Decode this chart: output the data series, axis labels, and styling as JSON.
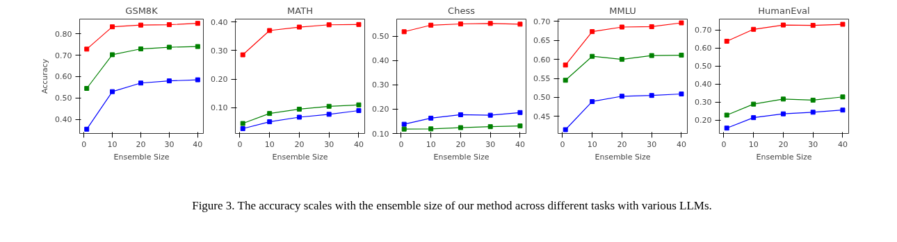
{
  "chart_data": [
    {
      "type": "line",
      "title": "GSM8K",
      "xlabel": "Ensemble Size",
      "ylabel": "Accuracy",
      "x": [
        1,
        10,
        20,
        30,
        40
      ],
      "xlim": [
        -1.5,
        42
      ],
      "xticks": [
        0,
        10,
        20,
        30,
        40
      ],
      "ylim": [
        0.335,
        0.868
      ],
      "yticks": [
        {
          "value": 0.4,
          "label": "0.40"
        },
        {
          "value": 0.5,
          "label": "0.50"
        },
        {
          "value": 0.6,
          "label": "0.60"
        },
        {
          "value": 0.7,
          "label": "0.70"
        },
        {
          "value": 0.8,
          "label": "0.80"
        }
      ],
      "marker": "square",
      "grid": false,
      "annotations": [
        "Figure 3. The accuracy scales with the ensemble size of our method across different tasks with various LLMs."
      ],
      "series": [
        {
          "color": "#0000ff",
          "values": [
            0.355,
            0.53,
            0.57,
            0.58,
            0.585
          ]
        },
        {
          "color": "#008000",
          "values": [
            0.545,
            0.702,
            0.729,
            0.737,
            0.74
          ]
        },
        {
          "color": "#ff0000",
          "values": [
            0.728,
            0.832,
            0.84,
            0.842,
            0.848
          ]
        }
      ]
    },
    {
      "type": "line",
      "title": "MATH",
      "xlabel": "Ensemble Size",
      "x": [
        1,
        10,
        20,
        30,
        40
      ],
      "xlim": [
        -1.5,
        42
      ],
      "xticks": [
        0,
        10,
        20,
        30,
        40
      ],
      "ylim": [
        0.01,
        0.41
      ],
      "yticks": [
        {
          "value": 0.1,
          "label": "0.10"
        },
        {
          "value": 0.2,
          "label": "0.20"
        },
        {
          "value": 0.3,
          "label": "0.30"
        },
        {
          "value": 0.4,
          "label": "0.40"
        }
      ],
      "marker": "square",
      "grid": false,
      "series": [
        {
          "color": "#0000ff",
          "values": [
            0.027,
            0.051,
            0.067,
            0.077,
            0.09
          ]
        },
        {
          "color": "#008000",
          "values": [
            0.045,
            0.08,
            0.095,
            0.105,
            0.11
          ]
        },
        {
          "color": "#ff0000",
          "values": [
            0.285,
            0.37,
            0.382,
            0.39,
            0.391
          ]
        }
      ]
    },
    {
      "type": "line",
      "title": "Chess",
      "xlabel": "Ensemble Size",
      "x": [
        1,
        10,
        20,
        30,
        40
      ],
      "xlim": [
        -1.5,
        42
      ],
      "xticks": [
        0,
        10,
        20,
        30,
        40
      ],
      "ylim": [
        0.1,
        0.57
      ],
      "yticks": [
        {
          "value": 0.1,
          "label": "0.10"
        },
        {
          "value": 0.2,
          "label": "0.20"
        },
        {
          "value": 0.3,
          "label": "0.30"
        },
        {
          "value": 0.4,
          "label": "0.40"
        },
        {
          "value": 0.5,
          "label": "0.50"
        }
      ],
      "marker": "square",
      "grid": false,
      "series": [
        {
          "color": "#0000ff",
          "values": [
            0.138,
            0.163,
            0.177,
            0.175,
            0.186
          ]
        },
        {
          "color": "#008000",
          "values": [
            0.118,
            0.119,
            0.124,
            0.128,
            0.131
          ]
        },
        {
          "color": "#ff0000",
          "values": [
            0.518,
            0.545,
            0.55,
            0.552,
            0.549
          ]
        }
      ]
    },
    {
      "type": "line",
      "title": "MMLU",
      "xlabel": "Ensemble Size",
      "x": [
        1,
        10,
        20,
        30,
        40
      ],
      "xlim": [
        -1.5,
        42
      ],
      "xticks": [
        0,
        10,
        20,
        30,
        40
      ],
      "ylim": [
        0.405,
        0.706
      ],
      "yticks": [
        {
          "value": 0.45,
          "label": "0.45"
        },
        {
          "value": 0.5,
          "label": "0.50"
        },
        {
          "value": 0.55,
          "label": "0.55"
        },
        {
          "value": 0.6,
          "label": "0.60"
        },
        {
          "value": 0.65,
          "label": "0.65"
        },
        {
          "value": 0.7,
          "label": "0.70"
        }
      ],
      "marker": "square",
      "grid": false,
      "series": [
        {
          "color": "#0000ff",
          "values": [
            0.415,
            0.489,
            0.503,
            0.505,
            0.509
          ]
        },
        {
          "color": "#008000",
          "values": [
            0.545,
            0.608,
            0.6,
            0.61,
            0.611
          ]
        },
        {
          "color": "#ff0000",
          "values": [
            0.585,
            0.673,
            0.685,
            0.686,
            0.696
          ]
        }
      ]
    },
    {
      "type": "line",
      "title": "HumanEval",
      "xlabel": "Ensemble Size",
      "x": [
        1,
        10,
        20,
        30,
        40
      ],
      "xlim": [
        -1.5,
        42
      ],
      "xticks": [
        0,
        10,
        20,
        30,
        40
      ],
      "ylim": [
        0.125,
        0.76
      ],
      "yticks": [
        {
          "value": 0.2,
          "label": "0.20"
        },
        {
          "value": 0.3,
          "label": "0.30"
        },
        {
          "value": 0.4,
          "label": "0.40"
        },
        {
          "value": 0.5,
          "label": "0.50"
        },
        {
          "value": 0.6,
          "label": "0.60"
        },
        {
          "value": 0.7,
          "label": "0.70"
        }
      ],
      "marker": "square",
      "grid": false,
      "series": [
        {
          "color": "#0000ff",
          "values": [
            0.155,
            0.213,
            0.234,
            0.243,
            0.255
          ]
        },
        {
          "color": "#008000",
          "values": [
            0.227,
            0.288,
            0.316,
            0.31,
            0.328
          ]
        },
        {
          "color": "#ff0000",
          "values": [
            0.637,
            0.703,
            0.727,
            0.725,
            0.731
          ]
        }
      ]
    }
  ]
}
